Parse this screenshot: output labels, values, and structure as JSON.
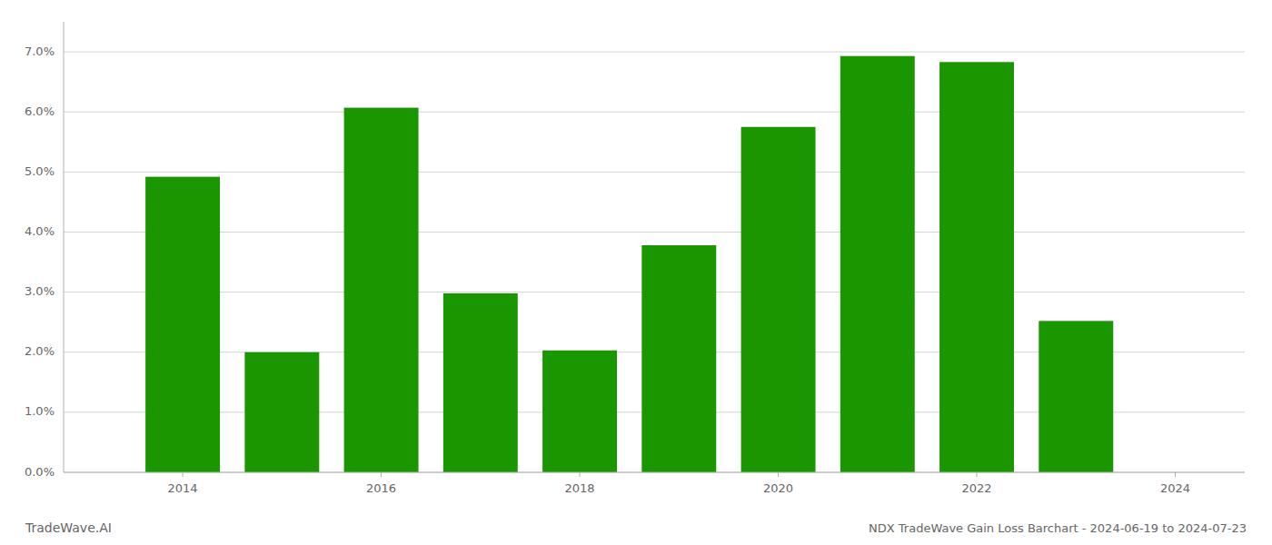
{
  "chart_data": {
    "type": "bar",
    "title": "NDX TradeWave Gain Loss Barchart - 2024-06-19 to 2024-07-23",
    "annotations": [
      "TradeWave.AI"
    ],
    "x": [
      2014,
      2015,
      2016,
      2017,
      2018,
      2019,
      2020,
      2021,
      2022,
      2023
    ],
    "values": [
      0.0492,
      0.02,
      0.0607,
      0.0298,
      0.0203,
      0.0378,
      0.0575,
      0.0693,
      0.0683,
      0.0252
    ],
    "color": "#1a9600",
    "xlim": [
      2012.8,
      2024.7
    ],
    "xticks": [
      2014,
      2016,
      2018,
      2020,
      2022,
      2024
    ],
    "ylim": [
      0.0,
      0.075
    ],
    "yticks": [
      {
        "value": 0.0,
        "label": "0.0%"
      },
      {
        "value": 0.01,
        "label": "1.0%"
      },
      {
        "value": 0.02,
        "label": "2.0%"
      },
      {
        "value": 0.03,
        "label": "3.0%"
      },
      {
        "value": 0.04,
        "label": "4.0%"
      },
      {
        "value": 0.05,
        "label": "5.0%"
      },
      {
        "value": 0.06,
        "label": "6.0%"
      },
      {
        "value": 0.07,
        "label": "7.0%"
      }
    ],
    "grid": true
  }
}
